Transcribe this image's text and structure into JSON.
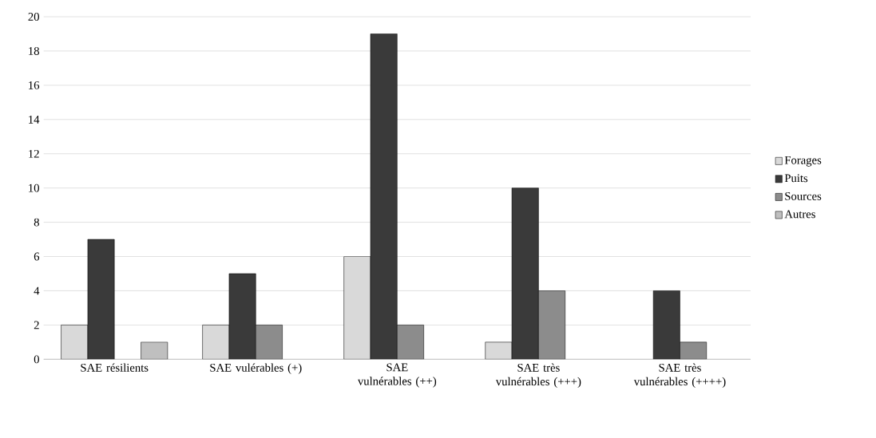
{
  "chart_data": {
    "type": "bar",
    "categories": [
      "SAE résilients",
      "SAE vulérables (+)",
      "SAE vulnérables (++)",
      "SAE très vulnérables (+++)",
      "SAE très vulnérables (++++)"
    ],
    "series": [
      {
        "name": "Forages",
        "color": "#d9d9d9",
        "values": [
          2,
          2,
          6,
          1,
          null
        ]
      },
      {
        "name": "Puits",
        "color": "#3a3a3a",
        "values": [
          7,
          5,
          19,
          10,
          4
        ]
      },
      {
        "name": "Sources",
        "color": "#8c8c8c",
        "values": [
          null,
          2,
          2,
          4,
          1
        ]
      },
      {
        "name": "Autres",
        "color": "#bfbfbf",
        "values": [
          1,
          null,
          null,
          null,
          null
        ]
      }
    ],
    "ylim": [
      0,
      20
    ],
    "yticks": [
      0,
      2,
      4,
      6,
      8,
      10,
      12,
      14,
      16,
      18,
      20
    ],
    "grid": "y",
    "legend": "right"
  }
}
